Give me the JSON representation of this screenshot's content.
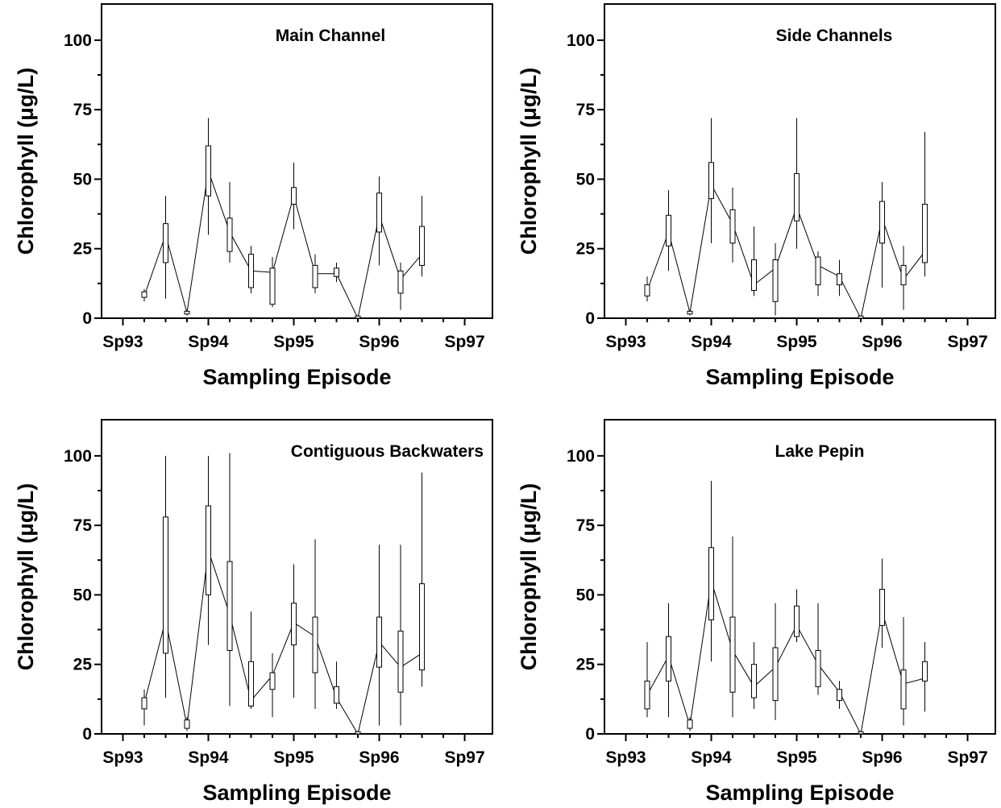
{
  "chart_data": [
    {
      "type": "box",
      "title": "Main Channel",
      "xlabel": "Sampling Episode",
      "ylabel": "Chlorophyll (μg/L)",
      "ylim": [
        0,
        113
      ],
      "yticks": [
        0,
        25,
        50,
        75,
        100
      ],
      "xticks": [
        {
          "label": "Sp93",
          "x": 0
        },
        {
          "label": "Sp94",
          "x": 4
        },
        {
          "label": "Sp95",
          "x": 8
        },
        {
          "label": "Sp96",
          "x": 12
        },
        {
          "label": "Sp97",
          "x": 16
        }
      ],
      "points": [
        {
          "x": 1,
          "min": 6,
          "q1": 7.5,
          "median": 8,
          "q3": 9.5,
          "max": 10.5
        },
        {
          "x": 2,
          "min": 7,
          "q1": 20,
          "median": 30,
          "q3": 34,
          "max": 44
        },
        {
          "x": 3,
          "min": 1,
          "q1": 1.5,
          "median": 2,
          "q3": 2.5,
          "max": 3
        },
        {
          "x": 4,
          "min": 30,
          "q1": 44,
          "median": 53,
          "q3": 62,
          "max": 72
        },
        {
          "x": 5,
          "min": 20,
          "q1": 24,
          "median": 31,
          "q3": 36,
          "max": 49
        },
        {
          "x": 6,
          "min": 9,
          "q1": 11,
          "median": 17,
          "q3": 23,
          "max": 26
        },
        {
          "x": 7,
          "min": 4,
          "q1": 5,
          "median": 16.5,
          "q3": 18,
          "max": 22
        },
        {
          "x": 8,
          "min": 32,
          "q1": 41,
          "median": 44,
          "q3": 47,
          "max": 56
        },
        {
          "x": 9,
          "min": 9,
          "q1": 11,
          "median": 16,
          "q3": 19,
          "max": 23
        },
        {
          "x": 10,
          "min": 13,
          "q1": 15,
          "median": 16,
          "q3": 18,
          "max": 20
        },
        {
          "x": 11,
          "min": 0,
          "q1": 0,
          "median": 0,
          "q3": 0.8,
          "max": 1
        },
        {
          "x": 12,
          "min": 19,
          "q1": 31,
          "median": 37,
          "q3": 45,
          "max": 51
        },
        {
          "x": 13,
          "min": 3,
          "q1": 9,
          "median": 14,
          "q3": 17,
          "max": 20
        },
        {
          "x": 14,
          "min": 15,
          "q1": 19,
          "median": 23,
          "q3": 33,
          "max": 44
        }
      ]
    },
    {
      "type": "box",
      "title": "Side Channels",
      "xlabel": "Sampling Episode",
      "ylabel": "Chlorophyll (μg/L)",
      "ylim": [
        0,
        113
      ],
      "yticks": [
        0,
        25,
        50,
        75,
        100
      ],
      "xticks": [
        {
          "label": "Sp93",
          "x": 0
        },
        {
          "label": "Sp94",
          "x": 4
        },
        {
          "label": "Sp95",
          "x": 8
        },
        {
          "label": "Sp96",
          "x": 12
        },
        {
          "label": "Sp97",
          "x": 16
        }
      ],
      "points": [
        {
          "x": 1,
          "min": 6,
          "q1": 8,
          "median": 10,
          "q3": 12,
          "max": 15
        },
        {
          "x": 2,
          "min": 17,
          "q1": 26,
          "median": 31,
          "q3": 37,
          "max": 46
        },
        {
          "x": 3,
          "min": 1,
          "q1": 1.5,
          "median": 2,
          "q3": 2.5,
          "max": 3
        },
        {
          "x": 4,
          "min": 27,
          "q1": 43,
          "median": 48,
          "q3": 56,
          "max": 72
        },
        {
          "x": 5,
          "min": 20,
          "q1": 27,
          "median": 34,
          "q3": 39,
          "max": 47
        },
        {
          "x": 6,
          "min": 8,
          "q1": 10,
          "median": 12,
          "q3": 21,
          "max": 33
        },
        {
          "x": 7,
          "min": 1,
          "q1": 6,
          "median": 18,
          "q3": 21,
          "max": 27
        },
        {
          "x": 8,
          "min": 25,
          "q1": 35,
          "median": 40,
          "q3": 52,
          "max": 72
        },
        {
          "x": 9,
          "min": 8,
          "q1": 12,
          "median": 19,
          "q3": 22,
          "max": 24
        },
        {
          "x": 10,
          "min": 8,
          "q1": 12,
          "median": 15,
          "q3": 16,
          "max": 21
        },
        {
          "x": 11,
          "min": 0,
          "q1": 0,
          "median": 0,
          "q3": 0.8,
          "max": 1
        },
        {
          "x": 12,
          "min": 11,
          "q1": 27,
          "median": 36,
          "q3": 42,
          "max": 49
        },
        {
          "x": 13,
          "min": 3,
          "q1": 12,
          "median": 14,
          "q3": 19,
          "max": 26
        },
        {
          "x": 14,
          "min": 15,
          "q1": 20,
          "median": 24,
          "q3": 41,
          "max": 67
        }
      ]
    },
    {
      "type": "box",
      "title": "Contiguous Backwaters",
      "xlabel": "Sampling Episode",
      "ylabel": "Chlorophyll (μg/L)",
      "ylim": [
        0,
        113
      ],
      "yticks": [
        0,
        25,
        50,
        75,
        100
      ],
      "xticks": [
        {
          "label": "Sp93",
          "x": 0
        },
        {
          "label": "Sp94",
          "x": 4
        },
        {
          "label": "Sp95",
          "x": 8
        },
        {
          "label": "Sp96",
          "x": 12
        },
        {
          "label": "Sp97",
          "x": 16
        }
      ],
      "points": [
        {
          "x": 1,
          "min": 3,
          "q1": 9,
          "median": 11,
          "q3": 13,
          "max": 16
        },
        {
          "x": 2,
          "min": 13,
          "q1": 29,
          "median": 41,
          "q3": 78,
          "max": 100
        },
        {
          "x": 3,
          "min": 1,
          "q1": 2,
          "median": 3,
          "q3": 5,
          "max": 6
        },
        {
          "x": 4,
          "min": 32,
          "q1": 50,
          "median": 66,
          "q3": 82,
          "max": 100
        },
        {
          "x": 5,
          "min": 10,
          "q1": 30,
          "median": 43,
          "q3": 62,
          "max": 101
        },
        {
          "x": 6,
          "min": 9,
          "q1": 10,
          "median": 12,
          "q3": 26,
          "max": 44
        },
        {
          "x": 7,
          "min": 6,
          "q1": 16,
          "median": 21,
          "q3": 22,
          "max": 29
        },
        {
          "x": 8,
          "min": 13,
          "q1": 32,
          "median": 40,
          "q3": 47,
          "max": 61
        },
        {
          "x": 9,
          "min": 9,
          "q1": 22,
          "median": 35,
          "q3": 42,
          "max": 70
        },
        {
          "x": 10,
          "min": 9,
          "q1": 11,
          "median": 13,
          "q3": 17,
          "max": 26
        },
        {
          "x": 11,
          "min": 0,
          "q1": 0,
          "median": 0,
          "q3": 0.8,
          "max": 1
        },
        {
          "x": 12,
          "min": 3,
          "q1": 24,
          "median": 33,
          "q3": 42,
          "max": 68
        },
        {
          "x": 13,
          "min": 3,
          "q1": 15,
          "median": 24,
          "q3": 37,
          "max": 68
        },
        {
          "x": 14,
          "min": 17,
          "q1": 23,
          "median": 29,
          "q3": 54,
          "max": 94
        }
      ]
    },
    {
      "type": "box",
      "title": "Lake Pepin",
      "xlabel": "Sampling Episode",
      "ylabel": "Chlorophyll (μg/L)",
      "ylim": [
        0,
        113
      ],
      "yticks": [
        0,
        25,
        50,
        75,
        100
      ],
      "xticks": [
        {
          "label": "Sp93",
          "x": 0
        },
        {
          "label": "Sp94",
          "x": 4
        },
        {
          "label": "Sp95",
          "x": 8
        },
        {
          "label": "Sp96",
          "x": 12
        },
        {
          "label": "Sp97",
          "x": 16
        }
      ],
      "points": [
        {
          "x": 1,
          "min": 6,
          "q1": 9,
          "median": 14,
          "q3": 19,
          "max": 33
        },
        {
          "x": 2,
          "min": 6,
          "q1": 19,
          "median": 28,
          "q3": 35,
          "max": 47
        },
        {
          "x": 3,
          "min": 1,
          "q1": 2,
          "median": 3,
          "q3": 5,
          "max": 6
        },
        {
          "x": 4,
          "min": 26,
          "q1": 41,
          "median": 55,
          "q3": 67,
          "max": 91
        },
        {
          "x": 5,
          "min": 6,
          "q1": 15,
          "median": 30,
          "q3": 42,
          "max": 71
        },
        {
          "x": 6,
          "min": 9,
          "q1": 13,
          "median": 17,
          "q3": 25,
          "max": 33
        },
        {
          "x": 7,
          "min": 5,
          "q1": 12,
          "median": 24,
          "q3": 31,
          "max": 47
        },
        {
          "x": 8,
          "min": 33,
          "q1": 35,
          "median": 39,
          "q3": 46,
          "max": 52
        },
        {
          "x": 9,
          "min": 14,
          "q1": 17,
          "median": 25,
          "q3": 30,
          "max": 47
        },
        {
          "x": 10,
          "min": 9,
          "q1": 12,
          "median": 15,
          "q3": 16,
          "max": 19
        },
        {
          "x": 11,
          "min": 0,
          "q1": 0,
          "median": 0,
          "q3": 0.8,
          "max": 1
        },
        {
          "x": 12,
          "min": 31,
          "q1": 39,
          "median": 44,
          "q3": 52,
          "max": 63
        },
        {
          "x": 13,
          "min": 3,
          "q1": 9,
          "median": 18,
          "q3": 23,
          "max": 42
        },
        {
          "x": 14,
          "min": 8,
          "q1": 19,
          "median": 20,
          "q3": 26,
          "max": 33
        }
      ]
    }
  ]
}
